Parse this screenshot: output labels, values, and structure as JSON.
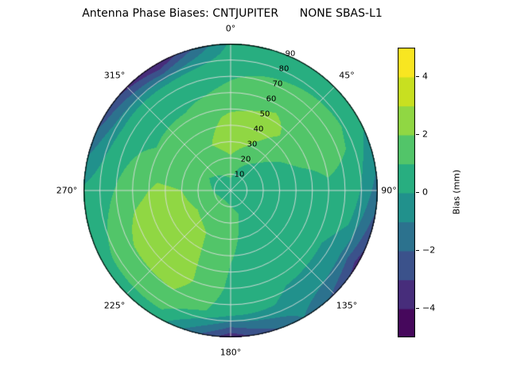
{
  "title": "Antenna Phase Biases: CNTJUPITER      NONE SBAS-L1",
  "chart_data": {
    "type": "polar_contour",
    "title": "Antenna Phase Biases: CNTJUPITER      NONE SBAS-L1",
    "theta_zero": "top",
    "theta_direction": "clockwise",
    "theta_tick_labels": [
      "0°",
      "45°",
      "90°",
      "135°",
      "180°",
      "225°",
      "270°",
      "315°"
    ],
    "r_tick_labels": [
      "10",
      "20",
      "30",
      "40",
      "50",
      "60",
      "70",
      "80",
      "90"
    ],
    "r_max": 90,
    "grid": true,
    "azimuth_grid_deg": [
      0,
      30,
      60,
      90,
      120,
      150,
      180,
      210,
      240,
      270,
      300,
      330,
      360
    ],
    "zenith_grid_deg": [
      0,
      15,
      30,
      45,
      60,
      75,
      90
    ],
    "bias_mm": [
      [
        0.5,
        0.5,
        0.5,
        0.5,
        0.5,
        0.5,
        0.5,
        0.5,
        0.5,
        0.5,
        0.5,
        0.5,
        0.5
      ],
      [
        1.5,
        0.8,
        0.3,
        0.2,
        0.4,
        0.8,
        1.3,
        1.6,
        1.5,
        1.2,
        1.0,
        1.2,
        1.5
      ],
      [
        2.6,
        1.8,
        0.8,
        0.2,
        0.1,
        0.5,
        1.2,
        2.0,
        2.4,
        2.0,
        1.4,
        1.8,
        2.6
      ],
      [
        2.2,
        2.4,
        1.4,
        0.4,
        0.0,
        0.3,
        1.0,
        2.2,
        2.8,
        2.2,
        1.2,
        1.4,
        2.2
      ],
      [
        1.2,
        1.8,
        1.6,
        0.8,
        0.2,
        0.2,
        0.8,
        2.4,
        2.6,
        1.6,
        0.8,
        0.8,
        1.2
      ],
      [
        0.8,
        1.0,
        1.2,
        0.6,
        -0.5,
        -0.2,
        0.5,
        1.8,
        1.5,
        0.8,
        0.2,
        0.2,
        0.8
      ],
      [
        0.2,
        0.5,
        0.3,
        -1.5,
        -3.5,
        -1.0,
        -3.8,
        0.5,
        0.6,
        0.2,
        -2.5,
        -4.2,
        0.2
      ]
    ],
    "levels": [
      -5,
      -4,
      -3,
      -2,
      -1,
      0,
      1,
      2,
      3,
      4,
      5
    ],
    "band_colors": [
      "#46085c",
      "#472d7b",
      "#3b528b",
      "#2c728e",
      "#21918c",
      "#28ae80",
      "#52c569",
      "#90d743",
      "#c8e020",
      "#f8e621"
    ],
    "colorbar": {
      "label": "Bias (mm)",
      "min": -5,
      "max": 5,
      "ticks": [
        {
          "value": 4,
          "label": "4"
        },
        {
          "value": 2,
          "label": "2"
        },
        {
          "value": 0,
          "label": "0"
        },
        {
          "value": -2,
          "label": "−2"
        },
        {
          "value": -4,
          "label": "−4"
        }
      ]
    }
  }
}
